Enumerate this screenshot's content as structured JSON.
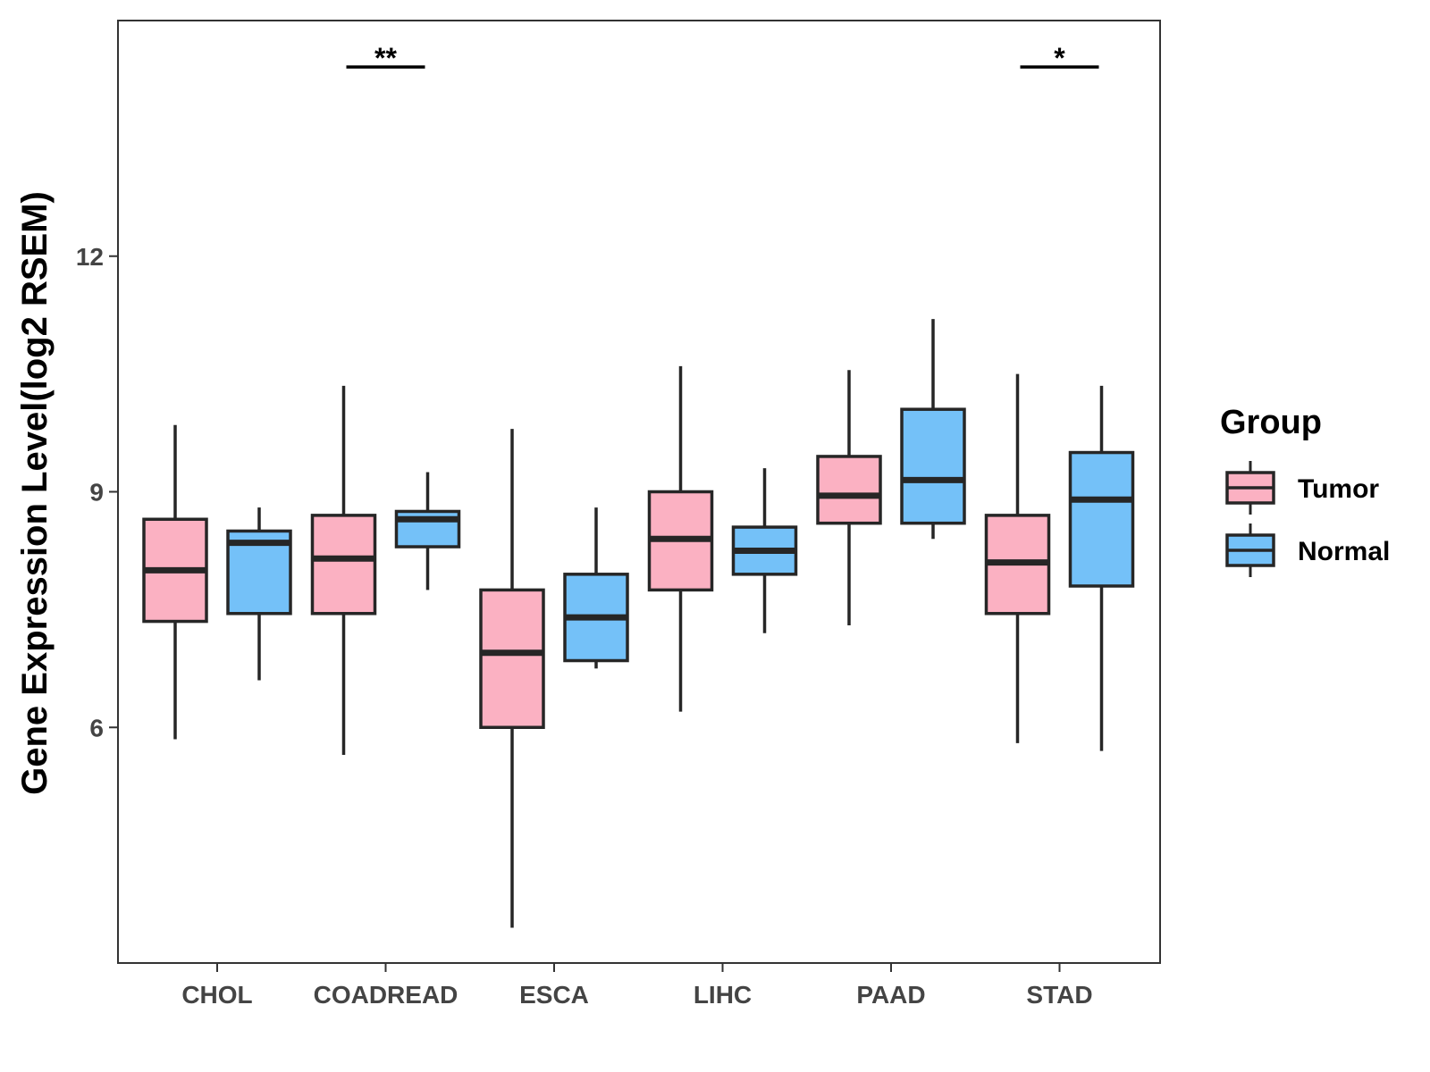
{
  "chart_data": {
    "type": "boxplot",
    "title": "",
    "xlabel": "",
    "ylabel": "Gene Expression Level(log2 RSEM)",
    "ylim": [
      3.0,
      15.0
    ],
    "yticks": [
      6,
      9,
      12
    ],
    "grid": false,
    "categories": [
      "CHOL",
      "COADREAD",
      "ESCA",
      "LIHC",
      "PAAD",
      "STAD"
    ],
    "legend": {
      "title": "Group",
      "position": "right",
      "entries": [
        {
          "name": "Tumor",
          "color": "#FBB1C2"
        },
        {
          "name": "Normal",
          "color": "#74C1F8"
        }
      ]
    },
    "series": [
      {
        "name": "Tumor",
        "color": "#FBB1C2",
        "boxes": [
          {
            "min": 5.85,
            "q1": 7.35,
            "median": 8.0,
            "q3": 8.65,
            "max": 9.85
          },
          {
            "min": 5.65,
            "q1": 7.45,
            "median": 8.15,
            "q3": 8.7,
            "max": 10.35
          },
          {
            "min": 3.45,
            "q1": 6.0,
            "median": 6.95,
            "q3": 7.75,
            "max": 9.8
          },
          {
            "min": 6.2,
            "q1": 7.75,
            "median": 8.4,
            "q3": 9.0,
            "max": 10.6
          },
          {
            "min": 7.3,
            "q1": 8.6,
            "median": 8.95,
            "q3": 9.45,
            "max": 10.55
          },
          {
            "min": 5.8,
            "q1": 7.45,
            "median": 8.1,
            "q3": 8.7,
            "max": 10.5
          }
        ]
      },
      {
        "name": "Normal",
        "color": "#74C1F8",
        "boxes": [
          {
            "min": 6.6,
            "q1": 7.45,
            "median": 8.35,
            "q3": 8.5,
            "max": 8.8
          },
          {
            "min": 7.75,
            "q1": 8.3,
            "median": 8.65,
            "q3": 8.75,
            "max": 9.25
          },
          {
            "min": 6.75,
            "q1": 6.85,
            "median": 7.4,
            "q3": 7.95,
            "max": 8.8
          },
          {
            "min": 7.2,
            "q1": 7.95,
            "median": 8.25,
            "q3": 8.55,
            "max": 9.3
          },
          {
            "min": 8.4,
            "q1": 8.6,
            "median": 9.15,
            "q3": 10.05,
            "max": 11.2
          },
          {
            "min": 5.7,
            "q1": 7.8,
            "median": 8.9,
            "q3": 9.5,
            "max": 10.35
          }
        ]
      }
    ],
    "annotations": [
      {
        "category": "COADREAD",
        "label": "**"
      },
      {
        "category": "STAD",
        "label": "*"
      }
    ]
  }
}
